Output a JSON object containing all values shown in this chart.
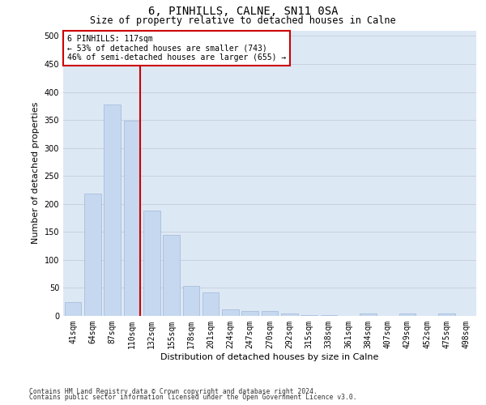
{
  "title": "6, PINHILLS, CALNE, SN11 0SA",
  "subtitle": "Size of property relative to detached houses in Calne",
  "xlabel": "Distribution of detached houses by size in Calne",
  "ylabel": "Number of detached properties",
  "categories": [
    "41sqm",
    "64sqm",
    "87sqm",
    "110sqm",
    "132sqm",
    "155sqm",
    "178sqm",
    "201sqm",
    "224sqm",
    "247sqm",
    "270sqm",
    "292sqm",
    "315sqm",
    "338sqm",
    "361sqm",
    "384sqm",
    "407sqm",
    "429sqm",
    "452sqm",
    "475sqm",
    "498sqm"
  ],
  "values": [
    25,
    218,
    378,
    348,
    188,
    145,
    53,
    42,
    12,
    9,
    9,
    5,
    2,
    1,
    0,
    4,
    0,
    5,
    0,
    5,
    0
  ],
  "bar_color": "#c5d8f0",
  "bar_edgecolor": "#a0b8d8",
  "grid_color": "#c8d0e0",
  "bg_color": "#dde8f5",
  "vline_color": "#cc0000",
  "vline_x_index": 3,
  "annotation_text": "6 PINHILLS: 117sqm\n← 53% of detached houses are smaller (743)\n46% of semi-detached houses are larger (655) →",
  "annotation_box_edgecolor": "#cc0000",
  "footnote1": "Contains HM Land Registry data © Crown copyright and database right 2024.",
  "footnote2": "Contains public sector information licensed under the Open Government Licence v3.0.",
  "ylim": [
    0,
    510
  ],
  "yticks": [
    0,
    50,
    100,
    150,
    200,
    250,
    300,
    350,
    400,
    450,
    500
  ],
  "bar_width": 0.85,
  "title_fontsize": 10,
  "subtitle_fontsize": 8.5,
  "ylabel_fontsize": 8,
  "xlabel_fontsize": 8,
  "tick_fontsize": 7,
  "ann_fontsize": 7,
  "footnote_fontsize": 5.8
}
